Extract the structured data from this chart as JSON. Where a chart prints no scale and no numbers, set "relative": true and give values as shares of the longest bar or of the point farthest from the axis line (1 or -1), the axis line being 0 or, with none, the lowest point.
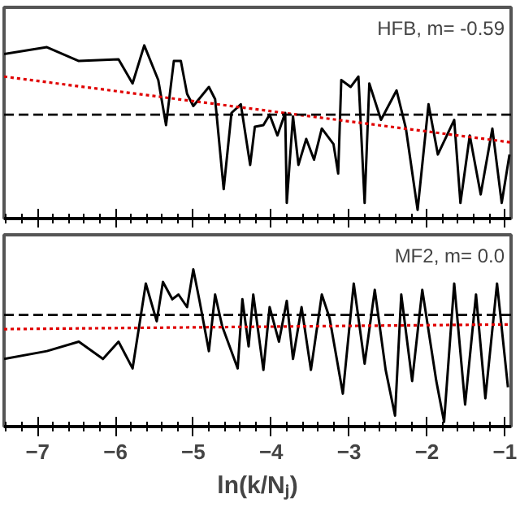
{
  "chart_data": [
    {
      "type": "line",
      "relative": true,
      "xlim": [
        -7.43,
        -0.92
      ],
      "xticks": [
        -7,
        -6,
        -5,
        -4,
        -3,
        -2,
        -1
      ],
      "tick_labels": false,
      "grid": false,
      "annotations": [
        "HFB, m= -0.59"
      ],
      "ref_lines": [
        {
          "axis": "y",
          "value": 0.6,
          "color": "#000000",
          "line_style": "dashed"
        }
      ],
      "series": [
        {
          "color": "#000000",
          "x": [
            -7.43,
            -6.88,
            -6.47,
            -5.96,
            -5.78,
            -5.63,
            -5.45,
            -5.35,
            -5.25,
            -5.16,
            -5.08,
            -5.0,
            -4.8,
            -4.72,
            -4.61,
            -4.51,
            -4.39,
            -4.27,
            -4.21,
            -4.1,
            -4.02,
            -3.92,
            -3.82,
            -3.8,
            -3.72,
            -3.65,
            -3.55,
            -3.45,
            -3.35,
            -3.2,
            -3.14,
            -3.1,
            -2.98,
            -2.88,
            -2.8,
            -2.74,
            -2.59,
            -2.39,
            -2.27,
            -2.12,
            -1.98,
            -1.86,
            -1.65,
            -1.57,
            -1.45,
            -1.31,
            -1.16,
            -1.04,
            -0.94
          ],
          "values": [
            0.95,
            0.99,
            0.91,
            0.92,
            0.78,
            1.0,
            0.8,
            0.54,
            0.91,
            0.91,
            0.72,
            0.65,
            0.76,
            0.69,
            0.17,
            0.61,
            0.66,
            0.31,
            0.53,
            0.54,
            0.6,
            0.48,
            0.61,
            0.09,
            0.59,
            0.31,
            0.46,
            0.34,
            0.52,
            0.43,
            0.26,
            0.8,
            0.76,
            0.82,
            0.09,
            0.78,
            0.57,
            0.74,
            0.52,
            0.05,
            0.66,
            0.37,
            0.57,
            0.09,
            0.48,
            0.14,
            0.52,
            0.09,
            0.37
          ]
        },
        {
          "type": "line",
          "color": "#e00000",
          "line_style": "dotted",
          "x": [
            -7.43,
            -0.92
          ],
          "values": [
            0.82,
            0.44
          ]
        }
      ]
    },
    {
      "type": "line",
      "relative": true,
      "xlim": [
        -7.43,
        -0.92
      ],
      "xticks": [
        -7,
        -6,
        -5,
        -4,
        -3,
        -2,
        -1
      ],
      "tick_labels": "x",
      "grid": false,
      "xlabel": "ln(k/Nⱼ)",
      "annotations": [
        "MF2, m= 0.0"
      ],
      "ref_lines": [
        {
          "axis": "y",
          "value": 0.71,
          "color": "#000000",
          "line_style": "dashed"
        }
      ],
      "series": [
        {
          "color": "#000000",
          "x": [
            -7.43,
            -6.88,
            -6.47,
            -6.16,
            -5.96,
            -5.78,
            -5.61,
            -5.47,
            -5.39,
            -5.27,
            -5.19,
            -5.08,
            -5.0,
            -4.92,
            -4.8,
            -4.72,
            -4.63,
            -4.43,
            -4.37,
            -4.29,
            -4.23,
            -4.1,
            -4.02,
            -3.9,
            -3.8,
            -3.72,
            -3.61,
            -3.49,
            -3.35,
            -3.25,
            -3.08,
            -2.94,
            -2.8,
            -2.67,
            -2.53,
            -2.41,
            -2.33,
            -2.19,
            -2.06,
            -1.88,
            -1.78,
            -1.65,
            -1.51,
            -1.37,
            -1.25,
            -1.1,
            -0.96
          ],
          "values": [
            0.43,
            0.48,
            0.54,
            0.43,
            0.54,
            0.37,
            0.91,
            0.67,
            0.92,
            0.81,
            0.84,
            0.76,
            1.0,
            0.8,
            0.48,
            0.84,
            0.64,
            0.37,
            0.81,
            0.51,
            0.84,
            0.36,
            0.76,
            0.54,
            0.8,
            0.43,
            0.76,
            0.36,
            0.84,
            0.69,
            0.21,
            0.91,
            0.4,
            0.87,
            0.36,
            0.07,
            0.84,
            0.29,
            0.87,
            0.29,
            0.03,
            0.91,
            0.14,
            0.84,
            0.18,
            0.91,
            0.25
          ]
        },
        {
          "type": "line",
          "color": "#e00000",
          "line_style": "dotted",
          "x": [
            -7.43,
            -0.92
          ],
          "values": [
            0.62,
            0.65
          ]
        }
      ]
    }
  ]
}
